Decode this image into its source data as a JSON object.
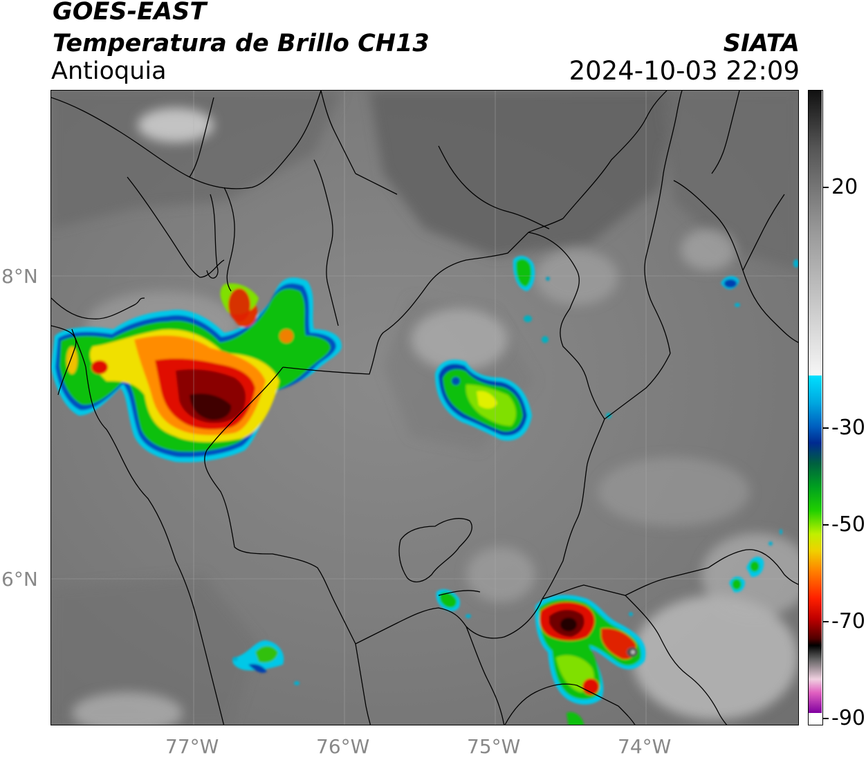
{
  "header": {
    "satellite": "GOES-EAST",
    "product": "Temperatura de Brillo CH13",
    "region": "Antioquia",
    "organization": "SIATA",
    "datetime": "2024-10-03 22:09"
  },
  "map": {
    "lat_labels": [
      "8°N",
      "6°N"
    ],
    "lon_labels": [
      "77°W",
      "76°W",
      "75°W",
      "74°W"
    ],
    "grid": true
  },
  "colorbar": {
    "tick_labels": [
      "20",
      "-30",
      "-50",
      "-70",
      "-90"
    ],
    "colors": {
      "warm": "#2a2a2a",
      "mid": "#9a9a9a",
      "cool": "#f0f0f0",
      "cyan": "#00d8f0",
      "blue": "#0030a0",
      "green": "#00c000",
      "yellow": "#f0f000",
      "orange": "#ff8000",
      "red": "#e00000",
      "darkred": "#600000",
      "black": "#000000",
      "pink": "#e060c0",
      "purple": "#8000a0"
    }
  },
  "storm_colors": {
    "edge": "#00c8e8",
    "blue": "#0040b0",
    "green": "#10c010",
    "lightgreen": "#80e000",
    "yellow": "#f0f000",
    "orange": "#ff8c00",
    "red": "#e01000",
    "darkred": "#700000",
    "core": "#300000"
  }
}
